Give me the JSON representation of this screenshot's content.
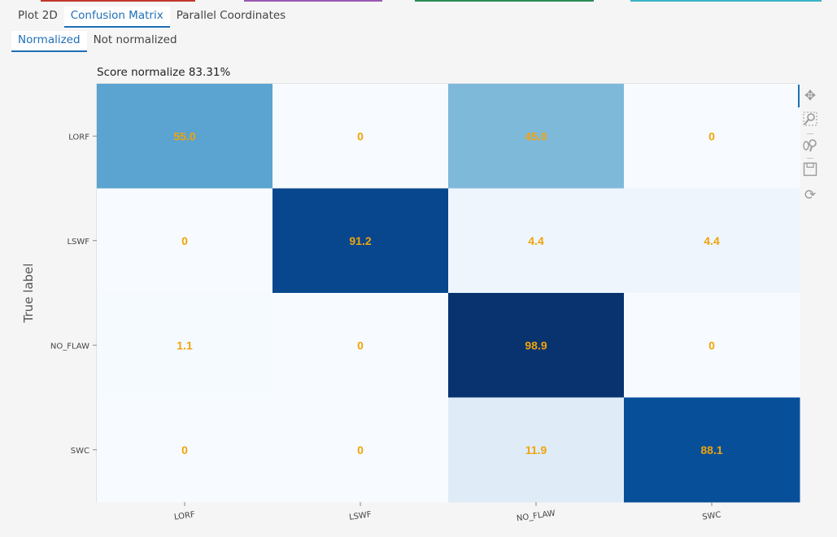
{
  "tabs": [
    {
      "label": "Plot 2D",
      "active": false
    },
    {
      "label": "Confusion Matrix",
      "active": true
    },
    {
      "label": "Parallel Coordinates",
      "active": false
    }
  ],
  "subtabs": [
    {
      "label": "Normalized",
      "active": true
    },
    {
      "label": "Not normalized",
      "active": false
    }
  ],
  "score_label": "Score normalize 83.31%",
  "toolbar": [
    "pan-icon",
    "box-zoom-icon",
    "wheel-zoom-icon",
    "save-icon",
    "reset-icon"
  ],
  "colors": {
    "accent": "#1f6fb5",
    "cell_text": "#f0a30a",
    "stripe": [
      "#c0392b",
      "#9b59b6",
      "#2e8b57",
      "#3bb3c3"
    ]
  },
  "chart_data": {
    "type": "heatmap",
    "title": "Score normalize 83.31%",
    "ylabel": "True label",
    "xlabel": "",
    "x_categories": [
      "LORF",
      "LSWF",
      "NO_FLAW",
      "SWC"
    ],
    "y_categories": [
      "LORF",
      "LSWF",
      "NO_FLAW",
      "SWC"
    ],
    "values": [
      [
        55.0,
        0,
        45.0,
        0
      ],
      [
        0,
        91.2,
        4.4,
        4.4
      ],
      [
        1.1,
        0,
        98.9,
        0
      ],
      [
        0,
        0,
        11.9,
        88.1
      ]
    ],
    "labels": [
      [
        "55.0",
        "0",
        "45.0",
        "0"
      ],
      [
        "0",
        "91.2",
        "4.4",
        "4.4"
      ],
      [
        "1.1",
        "0",
        "98.9",
        "0"
      ],
      [
        "0",
        "0",
        "11.9",
        "88.1"
      ]
    ],
    "colorscale": "Blues",
    "range": [
      0,
      100
    ]
  }
}
